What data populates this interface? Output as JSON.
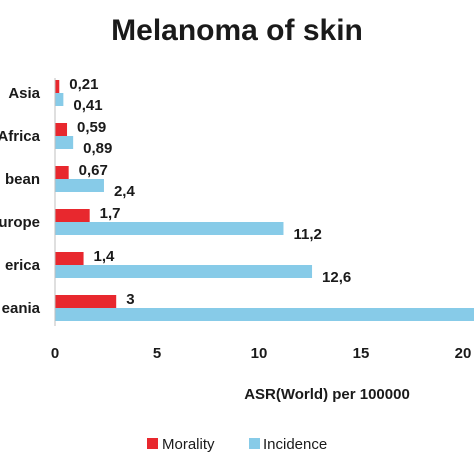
{
  "chart_data": {
    "type": "bar",
    "orientation": "horizontal",
    "title": "Melanoma of skin",
    "xlabel": "ASR(World) per 100000",
    "ylabel": "",
    "categories": [
      "Asia",
      "Africa",
      "bean",
      "urope",
      "erica",
      "eania"
    ],
    "series": [
      {
        "name": "Morality",
        "color": "#e8282e",
        "values": [
          0.21,
          0.59,
          0.67,
          1.7,
          1.4,
          3
        ],
        "labels": [
          "0,21",
          "0,59",
          "0,67",
          "1,7",
          "1,4",
          "3"
        ]
      },
      {
        "name": "Incidence",
        "color": "#87cbe8",
        "values": [
          0.41,
          0.89,
          2.4,
          11.2,
          12.6,
          20.6
        ],
        "labels": [
          "0,41",
          "0,89",
          "2,4",
          "11,2",
          "12,6",
          ""
        ]
      }
    ],
    "xlim": [
      0,
      20
    ],
    "xticks": [
      "0",
      "5",
      "10",
      "15",
      "20"
    ],
    "grid": false,
    "legend": "bottom"
  }
}
